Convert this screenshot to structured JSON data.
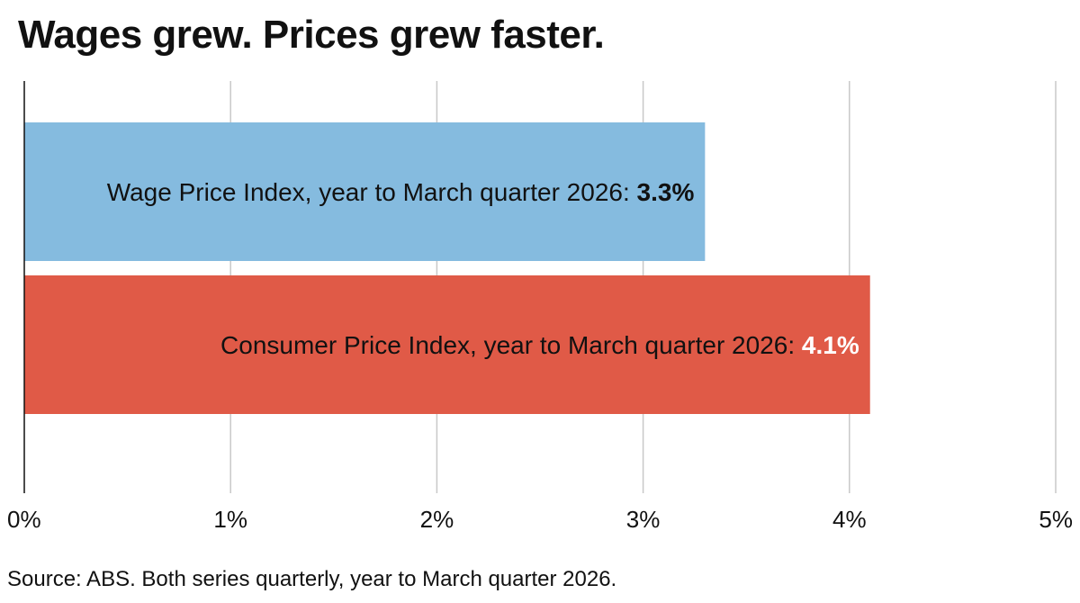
{
  "title": "Wages grew. Prices grew faster.",
  "source": "Source: ABS. Both series quarterly, year to March quarter 2026.",
  "chart_data": {
    "type": "bar",
    "orientation": "horizontal",
    "xlim": [
      0,
      5
    ],
    "xticks": [
      {
        "value": 0,
        "label": "0%"
      },
      {
        "value": 1,
        "label": "1%"
      },
      {
        "value": 2,
        "label": "2%"
      },
      {
        "value": 3,
        "label": "3%"
      },
      {
        "value": 4,
        "label": "4%"
      },
      {
        "value": 5,
        "label": "5%"
      }
    ],
    "grid": true,
    "bars": [
      {
        "label": "Wage Price Index, year to March quarter 2026: ",
        "value_label": "3.3%",
        "value": 3.3,
        "color": "#85bbdf",
        "label_color": "#111111",
        "value_color": "#111111"
      },
      {
        "label": "Consumer Price Index, year to March quarter 2026: ",
        "value_label": "4.1%",
        "value": 4.1,
        "color": "#e05a47",
        "label_color": "#111111",
        "value_color": "#ffffff"
      }
    ]
  }
}
